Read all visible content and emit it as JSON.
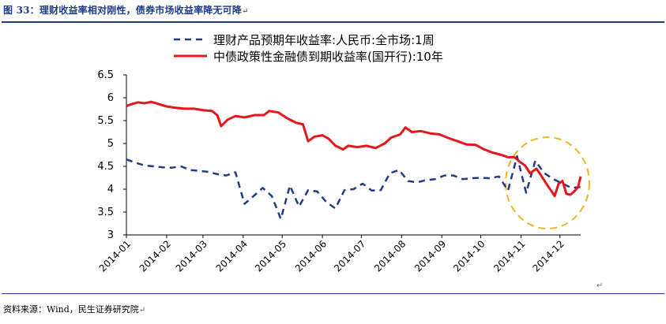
{
  "header": {
    "title": "图 33：理财收益率相对刚性，债券市场收益率降无可降",
    "return_mark": "↵"
  },
  "footer": {
    "source": "资料来源：Wind，民生证券研究院",
    "return_mark": "↵"
  },
  "colors": {
    "title": "#1f3b86",
    "series_wmp": "#1f3b86",
    "series_bond": "#e8151b",
    "highlight_circle": "#f0b323"
  },
  "chart_data": {
    "type": "line",
    "title": "",
    "xlabel": "",
    "ylabel": "",
    "ylim": [
      3,
      6.5
    ],
    "yticks": [
      "3",
      "3.5",
      "4",
      "4.5",
      "5",
      "5.5",
      "6",
      "6.5"
    ],
    "xlim": [
      "2014-01-01",
      "2014-12-17"
    ],
    "xticks": [
      "2014-01",
      "2014-02",
      "2014-03",
      "2014-04",
      "2014-05",
      "2014-06",
      "2014-07",
      "2014-08",
      "2014-09",
      "2014-10",
      "2014-11",
      "2014-12"
    ],
    "grid": false,
    "legend_position": "top",
    "annotation": "dashed circle highlighting the convergence of the two series in Nov-Dec 2014",
    "series": [
      {
        "name": "理财产品预期年收益率:人民币:全市场:1周",
        "style": "dashed",
        "points": [
          [
            "2014-01-01",
            4.65
          ],
          [
            "2014-01-08",
            4.58
          ],
          [
            "2014-01-15",
            4.52
          ],
          [
            "2014-01-22",
            4.5
          ],
          [
            "2014-01-29",
            4.48
          ],
          [
            "2014-02-05",
            4.47
          ],
          [
            "2014-02-12",
            4.5
          ],
          [
            "2014-02-19",
            4.42
          ],
          [
            "2014-02-26",
            4.4
          ],
          [
            "2014-03-05",
            4.38
          ],
          [
            "2014-03-12",
            4.33
          ],
          [
            "2014-03-19",
            4.3
          ],
          [
            "2014-03-26",
            4.37
          ],
          [
            "2014-04-02",
            3.68
          ],
          [
            "2014-04-09",
            3.85
          ],
          [
            "2014-04-16",
            4.03
          ],
          [
            "2014-04-23",
            3.85
          ],
          [
            "2014-04-30",
            3.35
          ],
          [
            "2014-05-07",
            4.08
          ],
          [
            "2014-05-14",
            3.62
          ],
          [
            "2014-05-21",
            3.98
          ],
          [
            "2014-05-28",
            3.95
          ],
          [
            "2014-06-04",
            3.72
          ],
          [
            "2014-06-11",
            3.58
          ],
          [
            "2014-06-18",
            3.98
          ],
          [
            "2014-06-25",
            4.0
          ],
          [
            "2014-07-02",
            4.12
          ],
          [
            "2014-07-09",
            3.97
          ],
          [
            "2014-07-16",
            3.98
          ],
          [
            "2014-07-23",
            4.35
          ],
          [
            "2014-07-30",
            4.42
          ],
          [
            "2014-08-06",
            4.18
          ],
          [
            "2014-08-13",
            4.15
          ],
          [
            "2014-08-20",
            4.2
          ],
          [
            "2014-08-27",
            4.22
          ],
          [
            "2014-09-03",
            4.3
          ],
          [
            "2014-09-10",
            4.3
          ],
          [
            "2014-09-17",
            4.22
          ],
          [
            "2014-09-24",
            4.24
          ],
          [
            "2014-10-01",
            4.25
          ],
          [
            "2014-10-08",
            4.24
          ],
          [
            "2014-10-15",
            4.28
          ],
          [
            "2014-10-22",
            3.97
          ],
          [
            "2014-10-29",
            4.72
          ],
          [
            "2014-11-05",
            3.92
          ],
          [
            "2014-11-12",
            4.62
          ],
          [
            "2014-11-19",
            4.35
          ],
          [
            "2014-11-26",
            4.22
          ],
          [
            "2014-12-03",
            4.12
          ],
          [
            "2014-12-10",
            4.03
          ],
          [
            "2014-12-17",
            4.05
          ]
        ]
      },
      {
        "name": "中债政策性金融债到期收益率(国开行):10年",
        "style": "solid",
        "points": [
          [
            "2014-01-01",
            5.82
          ],
          [
            "2014-01-05",
            5.86
          ],
          [
            "2014-01-10",
            5.9
          ],
          [
            "2014-01-15",
            5.88
          ],
          [
            "2014-01-20",
            5.91
          ],
          [
            "2014-01-26",
            5.86
          ],
          [
            "2014-02-01",
            5.81
          ],
          [
            "2014-02-08",
            5.78
          ],
          [
            "2014-02-15",
            5.76
          ],
          [
            "2014-02-22",
            5.76
          ],
          [
            "2014-03-01",
            5.73
          ],
          [
            "2014-03-08",
            5.71
          ],
          [
            "2014-03-12",
            5.62
          ],
          [
            "2014-03-15",
            5.38
          ],
          [
            "2014-03-20",
            5.52
          ],
          [
            "2014-03-26",
            5.6
          ],
          [
            "2014-04-02",
            5.57
          ],
          [
            "2014-04-10",
            5.62
          ],
          [
            "2014-04-17",
            5.62
          ],
          [
            "2014-04-21",
            5.71
          ],
          [
            "2014-04-28",
            5.68
          ],
          [
            "2014-05-05",
            5.55
          ],
          [
            "2014-05-12",
            5.45
          ],
          [
            "2014-05-17",
            5.42
          ],
          [
            "2014-05-21",
            5.05
          ],
          [
            "2014-05-26",
            5.15
          ],
          [
            "2014-06-01",
            5.18
          ],
          [
            "2014-06-06",
            5.1
          ],
          [
            "2014-06-11",
            4.95
          ],
          [
            "2014-06-17",
            4.87
          ],
          [
            "2014-06-21",
            4.95
          ],
          [
            "2014-06-28",
            4.92
          ],
          [
            "2014-07-05",
            4.95
          ],
          [
            "2014-07-12",
            4.9
          ],
          [
            "2014-07-19",
            5.0
          ],
          [
            "2014-07-24",
            5.13
          ],
          [
            "2014-07-31",
            5.2
          ],
          [
            "2014-08-04",
            5.35
          ],
          [
            "2014-08-09",
            5.25
          ],
          [
            "2014-08-16",
            5.27
          ],
          [
            "2014-08-23",
            5.22
          ],
          [
            "2014-08-30",
            5.2
          ],
          [
            "2014-09-06",
            5.12
          ],
          [
            "2014-09-13",
            5.05
          ],
          [
            "2014-09-20",
            4.98
          ],
          [
            "2014-09-27",
            4.97
          ],
          [
            "2014-10-03",
            4.88
          ],
          [
            "2014-10-10",
            4.8
          ],
          [
            "2014-10-17",
            4.75
          ],
          [
            "2014-10-22",
            4.7
          ],
          [
            "2014-10-27",
            4.7
          ],
          [
            "2014-10-31",
            4.6
          ],
          [
            "2014-11-04",
            4.52
          ],
          [
            "2014-11-08",
            4.35
          ],
          [
            "2014-11-13",
            4.45
          ],
          [
            "2014-11-17",
            4.28
          ],
          [
            "2014-11-21",
            4.1
          ],
          [
            "2014-11-24",
            3.98
          ],
          [
            "2014-11-27",
            3.85
          ],
          [
            "2014-11-30",
            4.12
          ],
          [
            "2014-12-03",
            4.18
          ],
          [
            "2014-12-06",
            3.9
          ],
          [
            "2014-12-09",
            3.88
          ],
          [
            "2014-12-12",
            3.95
          ],
          [
            "2014-12-15",
            4.05
          ],
          [
            "2014-12-17",
            4.28
          ]
        ]
      }
    ]
  }
}
